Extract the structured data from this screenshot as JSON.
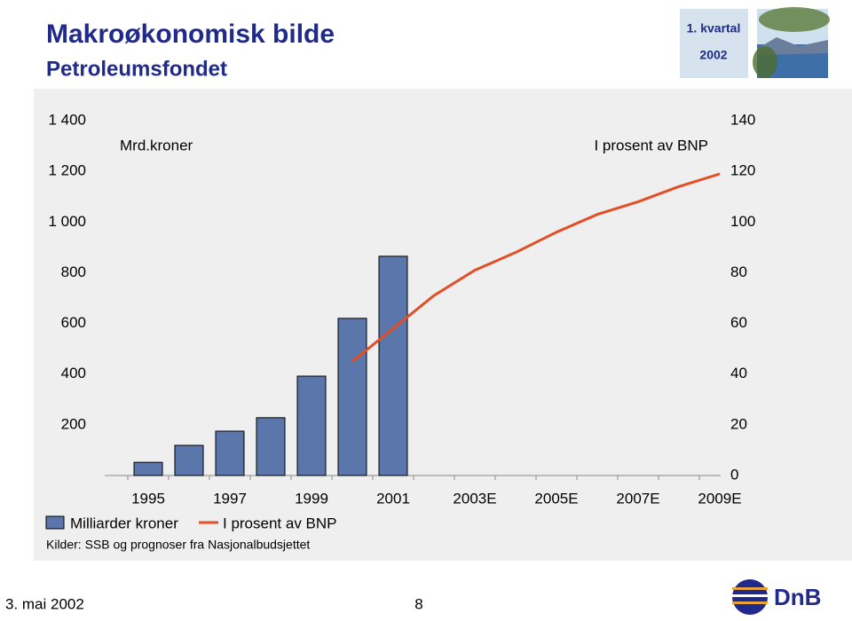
{
  "header": {
    "title": "Makroøkonomisk bilde",
    "subtitle": "Petroleumsfondet",
    "period": "1. kvartal",
    "year": "2002"
  },
  "chart_data": {
    "type": "bar-line",
    "y_label": "Mrd.kroner",
    "y2_label": "I prosent av BNP",
    "categories": [
      "1995",
      null,
      "1997",
      null,
      "1999",
      null,
      "2001",
      null,
      "2003E",
      null,
      "2005E",
      null,
      "2007E",
      null,
      "2009E"
    ],
    "series": [
      {
        "name": "Milliarder kroner",
        "type": "bar",
        "color": "#5a76ab",
        "values": [
          52,
          119,
          175,
          228,
          392,
          620,
          865,
          null,
          null,
          null,
          null,
          null,
          null,
          null,
          null
        ]
      },
      {
        "name": "I prosent av BNP",
        "type": "line",
        "axis": "y2",
        "color": "#e24e26",
        "values": [
          null,
          null,
          null,
          null,
          null,
          45,
          58,
          71,
          81,
          88,
          96,
          103,
          108,
          114,
          119
        ]
      }
    ],
    "ylim": [
      0,
      1400
    ],
    "yticks": [
      {
        "value": 200,
        "label": "200"
      },
      {
        "value": 400,
        "label": "400"
      },
      {
        "value": 600,
        "label": "600"
      },
      {
        "value": 800,
        "label": "800"
      },
      {
        "value": 1000,
        "label": "1 000"
      },
      {
        "value": 1200,
        "label": "1 200"
      },
      {
        "value": 1400,
        "label": "1 400"
      }
    ],
    "y2lim": [
      0,
      140
    ],
    "y2ticks": [
      0,
      20,
      40,
      60,
      80,
      100,
      120,
      140
    ],
    "grid": false,
    "source": "Kilder: SSB og prognoser fra Nasjonalbudsjettet"
  },
  "footer": {
    "date": "3. mai 2002",
    "page": "8",
    "logo": "DnB"
  }
}
